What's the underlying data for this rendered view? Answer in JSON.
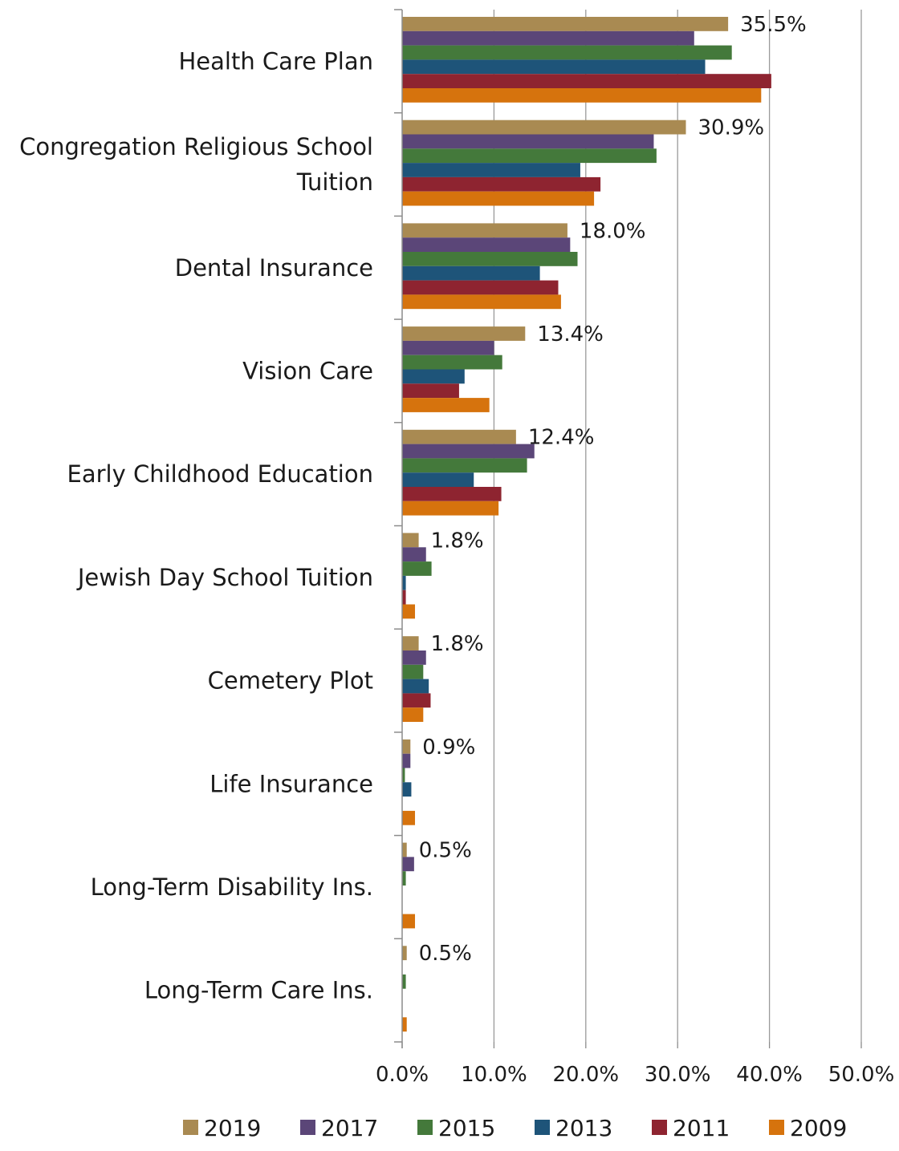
{
  "chart_data": {
    "type": "bar",
    "orientation": "horizontal",
    "categories": [
      "Health Care Plan",
      "Congregation Religious School\nTuition",
      "Dental Insurance",
      "Vision Care",
      "Early Childhood Education",
      "Jewish Day School Tuition",
      "Cemetery Plot",
      "Life Insurance",
      "Long-Term Disability Ins.",
      "Long-Term Care Ins."
    ],
    "series": [
      {
        "name": "2019",
        "color": "#a98a52",
        "values": [
          35.5,
          30.9,
          18.0,
          13.4,
          12.4,
          1.8,
          1.8,
          0.9,
          0.5,
          0.5
        ]
      },
      {
        "name": "2017",
        "color": "#5b4678",
        "values": [
          31.8,
          27.4,
          18.3,
          10.0,
          14.4,
          2.6,
          2.6,
          0.9,
          1.3,
          0.0
        ]
      },
      {
        "name": "2015",
        "color": "#44793b",
        "values": [
          35.9,
          27.7,
          19.1,
          10.9,
          13.6,
          3.2,
          2.3,
          0.3,
          0.4,
          0.4
        ]
      },
      {
        "name": "2013",
        "color": "#1e5479",
        "values": [
          33.0,
          19.4,
          15.0,
          6.8,
          7.8,
          0.4,
          2.9,
          1.0,
          0.0,
          0.0
        ]
      },
      {
        "name": "2011",
        "color": "#8e2430",
        "values": [
          40.2,
          21.6,
          17.0,
          6.2,
          10.8,
          0.4,
          3.1,
          0.0,
          0.0,
          0.0
        ]
      },
      {
        "name": "2009",
        "color": "#d6730d",
        "values": [
          39.1,
          20.9,
          17.3,
          9.5,
          10.5,
          1.4,
          2.3,
          1.4,
          1.4,
          0.5
        ]
      }
    ],
    "data_labels": [
      "35.5%",
      "30.9%",
      "18.0%",
      "13.4%",
      "12.4%",
      "1.8%",
      "1.8%",
      "0.9%",
      "0.5%",
      "0.5%"
    ],
    "xticks": [
      "0.0%",
      "10.0%",
      "20.0%",
      "30.0%",
      "40.0%",
      "50.0%"
    ],
    "xlim": [
      0,
      50
    ],
    "grid": "vertical",
    "legend_position": "bottom",
    "title": "",
    "xlabel": "",
    "ylabel": ""
  }
}
